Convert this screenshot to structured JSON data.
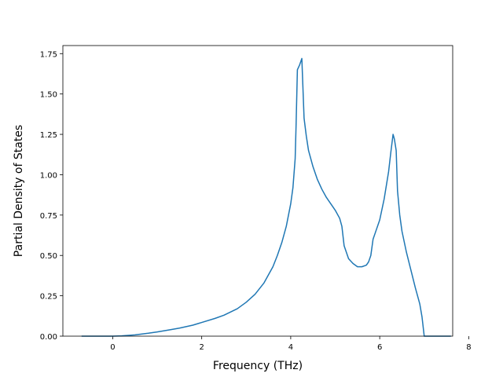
{
  "chart_data": {
    "type": "line",
    "title": "",
    "xlabel": "Frequency (THz)",
    "ylabel": "Partial Density of States",
    "xlim": [
      -1.12,
      7.64
    ],
    "ylim": [
      0,
      1.8
    ],
    "xticks": [
      0,
      2,
      4,
      6,
      8
    ],
    "yticks": [
      0,
      0.25,
      0.5,
      0.75,
      1.0,
      1.25,
      1.5,
      1.75
    ],
    "xtick_labels": [
      "0",
      "2",
      "4",
      "6",
      "8"
    ],
    "ytick_labels": [
      "0.00",
      "0.25",
      "0.50",
      "0.75",
      "1.00",
      "1.25",
      "1.50",
      "1.75"
    ],
    "grid": false,
    "legend": "none",
    "series": [
      {
        "color": "#1f77b4",
        "x": [
          -0.7,
          -0.3,
          0.0,
          0.2,
          0.5,
          0.8,
          1.0,
          1.3,
          1.5,
          1.8,
          2.0,
          2.3,
          2.5,
          2.8,
          3.0,
          3.2,
          3.4,
          3.6,
          3.7,
          3.8,
          3.9,
          4.0,
          4.05,
          4.1,
          4.12,
          4.15,
          4.2,
          4.25,
          4.3,
          4.35,
          4.4,
          4.5,
          4.6,
          4.7,
          4.8,
          4.9,
          5.0,
          5.1,
          5.15,
          5.2,
          5.3,
          5.4,
          5.5,
          5.6,
          5.7,
          5.75,
          5.8,
          5.85,
          5.9,
          6.0,
          6.1,
          6.2,
          6.25,
          6.3,
          6.33,
          6.37,
          6.4,
          6.45,
          6.5,
          6.6,
          6.7,
          6.8,
          6.9,
          6.95,
          7.0,
          7.3,
          7.6
        ],
        "y": [
          0.0,
          0.0,
          0.0,
          0.002,
          0.008,
          0.018,
          0.026,
          0.04,
          0.05,
          0.068,
          0.085,
          0.11,
          0.13,
          0.17,
          0.21,
          0.26,
          0.33,
          0.43,
          0.5,
          0.58,
          0.68,
          0.82,
          0.92,
          1.1,
          1.3,
          1.65,
          1.68,
          1.72,
          1.35,
          1.24,
          1.15,
          1.05,
          0.97,
          0.91,
          0.86,
          0.82,
          0.78,
          0.73,
          0.68,
          0.56,
          0.48,
          0.45,
          0.43,
          0.43,
          0.44,
          0.46,
          0.5,
          0.6,
          0.64,
          0.72,
          0.85,
          1.02,
          1.14,
          1.25,
          1.22,
          1.15,
          0.9,
          0.75,
          0.65,
          0.52,
          0.41,
          0.3,
          0.2,
          0.12,
          0.0,
          0.0,
          0.0
        ]
      }
    ]
  }
}
